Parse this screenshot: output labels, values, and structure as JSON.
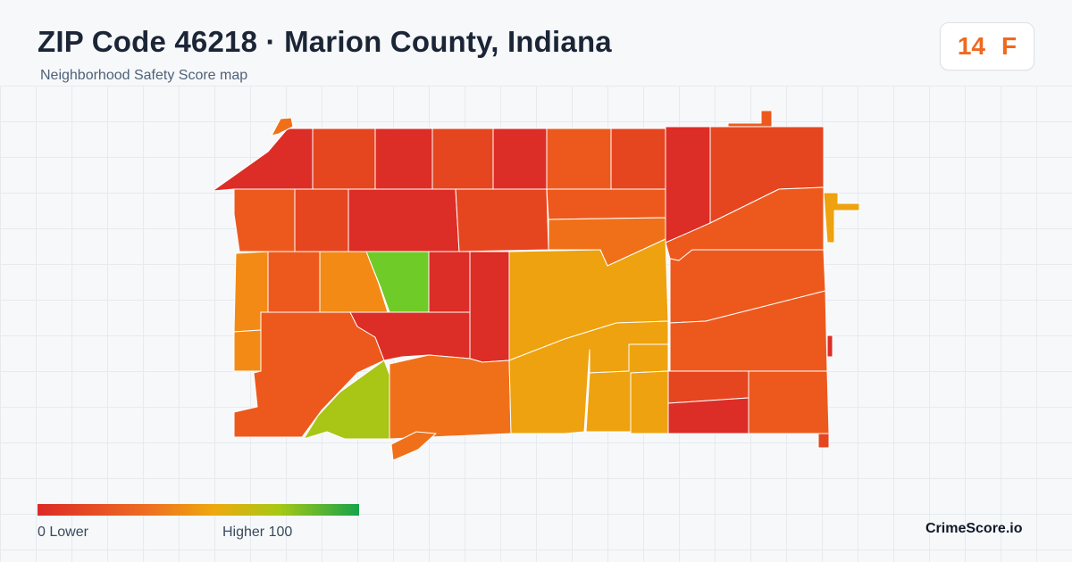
{
  "header": {
    "title": "ZIP Code 46218 · Marion County, Indiana",
    "subtitle": "Neighborhood Safety Score map"
  },
  "score": {
    "value": "14",
    "grade": "F"
  },
  "legend": {
    "min_label": "0  Lower",
    "max_label": "Higher  100",
    "colors": [
      "#dc2a26",
      "#ee7022",
      "#eea90e",
      "#a7c815",
      "#16a34a"
    ]
  },
  "brand": "CrimeScore.io",
  "map": {
    "tract_colors": {
      "red": "#dc2d26",
      "red_orange": "#e5451f",
      "orange_red": "#ed591d",
      "orange": "#f07019",
      "orange_amber": "#f38a16",
      "amber": "#eea20f",
      "yellow_green": "#a9c516",
      "green": "#6fcb27"
    }
  }
}
